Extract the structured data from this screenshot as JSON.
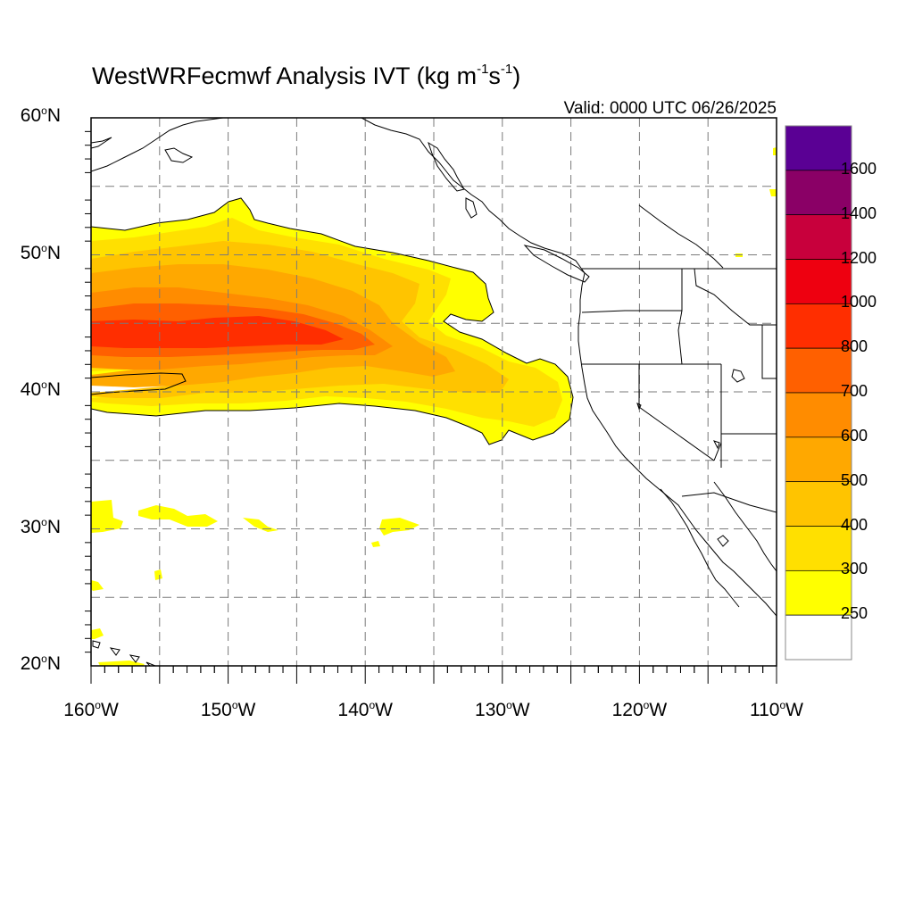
{
  "title": {
    "main": "WestWRFecmwf Analysis IVT (kg m",
    "sup1": "-1",
    "mid": "s",
    "sup2": "-1",
    "end": ")"
  },
  "valid_time": "Valid: 0000 UTC 06/26/2025",
  "axes": {
    "lat_ticks": [
      {
        "deg": "60",
        "hem": "N"
      },
      {
        "deg": "50",
        "hem": "N"
      },
      {
        "deg": "40",
        "hem": "N"
      },
      {
        "deg": "30",
        "hem": "N"
      },
      {
        "deg": "20",
        "hem": "N"
      }
    ],
    "lon_ticks": [
      {
        "deg": "160",
        "hem": "W"
      },
      {
        "deg": "150",
        "hem": "W"
      },
      {
        "deg": "140",
        "hem": "W"
      },
      {
        "deg": "130",
        "hem": "W"
      },
      {
        "deg": "120",
        "hem": "W"
      },
      {
        "deg": "110",
        "hem": "W"
      }
    ],
    "lon_range": [
      -160,
      -110
    ],
    "lat_range": [
      20,
      60
    ],
    "grid": "dashed"
  },
  "colorbar": {
    "labels": [
      "1600",
      "1400",
      "1200",
      "1000",
      "800",
      "700",
      "600",
      "500",
      "400",
      "300",
      "250"
    ],
    "colors": [
      "#5a0094",
      "#8a0066",
      "#c8003c",
      "#ee0010",
      "#ff2e00",
      "#ff6000",
      "#ff8c00",
      "#ffa800",
      "#ffc400",
      "#ffe000",
      "#ffff00",
      "#ffffff"
    ]
  },
  "ivt_colors": {
    "c250": "#ffff00",
    "c300": "#ffe000",
    "c400": "#ffc400",
    "c500": "#ffa800",
    "c600": "#ff8c00",
    "c700": "#ff6000",
    "c800": "#ff2e00"
  }
}
